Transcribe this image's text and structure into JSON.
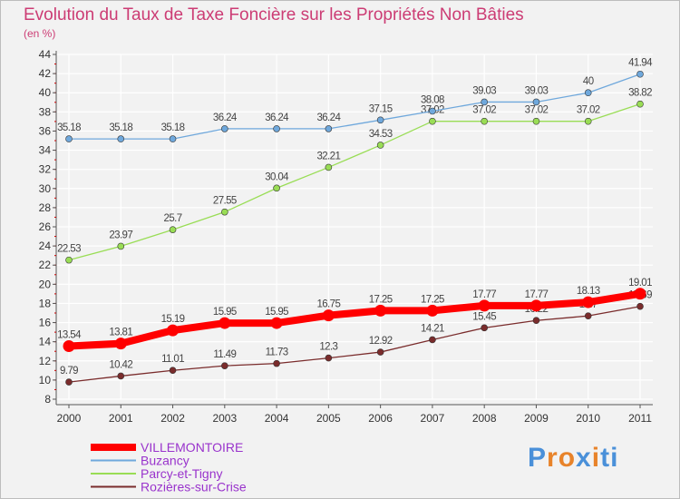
{
  "title": "Evolution du Taux de Taxe Foncière sur les Propriétés Non Bâties",
  "unit_label": "(en %)",
  "logo_text": "Proxiti",
  "colors": {
    "title": "#cc3c74",
    "axis": "#555555",
    "grid": "#ffffff",
    "bg": "#f2f2f2",
    "legend_text": "#9933cc"
  },
  "chart_data": {
    "type": "line",
    "title": "Evolution du Taux de Taxe Foncière sur les Propriétés Non Bâties",
    "ylabel": "(en %)",
    "xlabel": "",
    "x": [
      "2000",
      "2001",
      "2002",
      "2003",
      "2004",
      "2005",
      "2006",
      "2007",
      "2008",
      "2009",
      "2010",
      "2011"
    ],
    "ylim": [
      8,
      44
    ],
    "yticks": [
      8,
      10,
      12,
      14,
      16,
      18,
      20,
      22,
      24,
      26,
      28,
      30,
      32,
      34,
      36,
      38,
      40,
      42,
      44
    ],
    "grid": true,
    "legend": "bottom-left",
    "series": [
      {
        "name": "VILLEMONTOIRE",
        "color": "#ff0000",
        "values": [
          13.54,
          13.81,
          15.19,
          15.95,
          15.95,
          16.75,
          17.25,
          17.25,
          17.77,
          17.77,
          18.13,
          19.01
        ],
        "labels": [
          "13.54",
          "13.81",
          "15.19",
          "15.95",
          "15.95",
          "16.75",
          "17.25",
          "17.25",
          "17.77",
          "17.77",
          "18.13",
          "19.01"
        ]
      },
      {
        "name": "Buzancy",
        "color": "#6fa8dc",
        "values": [
          35.18,
          35.18,
          35.18,
          36.24,
          36.24,
          36.24,
          37.15,
          38.08,
          39.03,
          39.03,
          40,
          41.94
        ],
        "labels": [
          "35.18",
          "35.18",
          "35.18",
          "36.24",
          "36.24",
          "36.24",
          "37.15",
          "38.08",
          "39.03",
          "39.03",
          "40",
          "41.94"
        ]
      },
      {
        "name": "Parcy-et-Tigny",
        "color": "#99dd55",
        "values": [
          22.53,
          23.97,
          25.7,
          27.55,
          30.04,
          32.21,
          34.53,
          37.02,
          37.02,
          37.02,
          37.02,
          38.82
        ],
        "labels": [
          "22.53",
          "23.97",
          "25.7",
          "27.55",
          "30.04",
          "32.21",
          "34.53",
          "37.02",
          "37.02",
          "37.02",
          "37.02",
          "38.82"
        ]
      },
      {
        "name": "Rozières-sur-Crise",
        "color": "#7a2c2c",
        "values": [
          9.79,
          10.42,
          11.01,
          11.49,
          11.73,
          12.3,
          12.92,
          14.21,
          15.45,
          16.22,
          16.7,
          17.69
        ],
        "labels": [
          "9.79",
          "10.42",
          "11.01",
          "11.49",
          "11.73",
          "12.3",
          "12.92",
          "14.21",
          "15.45",
          "16.22",
          "16.7",
          "17.69"
        ]
      }
    ]
  }
}
